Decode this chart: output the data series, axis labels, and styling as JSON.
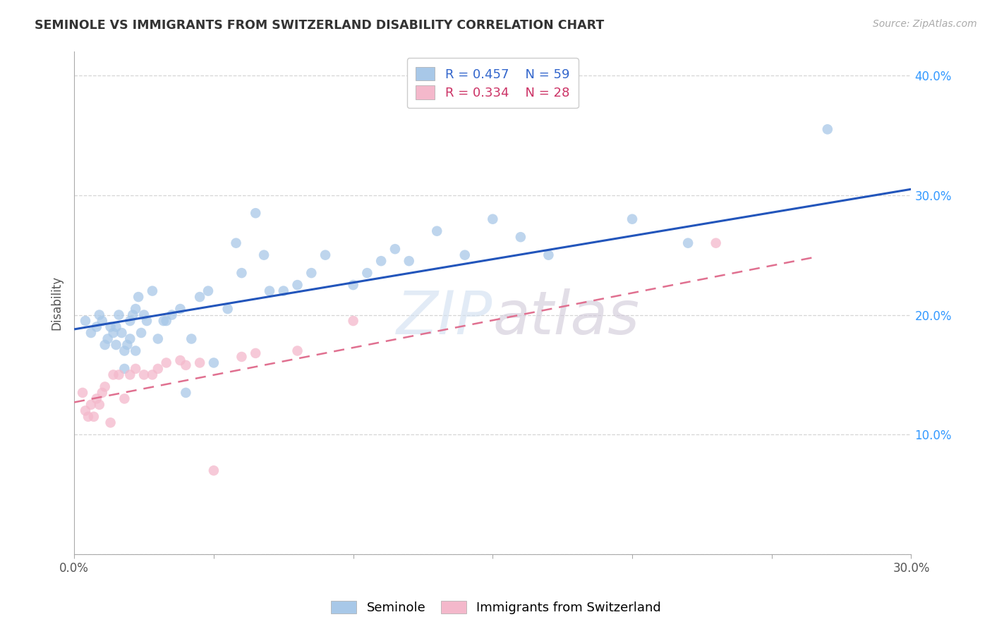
{
  "title": "SEMINOLE VS IMMIGRANTS FROM SWITZERLAND DISABILITY CORRELATION CHART",
  "source_text": "Source: ZipAtlas.com",
  "ylabel": "Disability",
  "xlim": [
    0.0,
    0.3
  ],
  "ylim": [
    0.0,
    0.42
  ],
  "xticks": [
    0.0,
    0.05,
    0.1,
    0.15,
    0.2,
    0.25,
    0.3
  ],
  "ytick_positions": [
    0.0,
    0.1,
    0.2,
    0.3,
    0.4
  ],
  "grid_color": "#cccccc",
  "background_color": "#ffffff",
  "seminole_color": "#a8c8e8",
  "swiss_color": "#f4b8cb",
  "seminole_line_color": "#2255bb",
  "swiss_line_color": "#e07090",
  "legend_R_seminole": "R = 0.457",
  "legend_N_seminole": "N = 59",
  "legend_R_swiss": "R = 0.334",
  "legend_N_swiss": "N = 28",
  "seminole_R_color": "#3366cc",
  "seminole_N_color": "#cc3333",
  "swiss_R_color": "#cc3366",
  "swiss_N_color": "#cc3333",
  "seminole_x": [
    0.004,
    0.006,
    0.008,
    0.009,
    0.01,
    0.011,
    0.012,
    0.013,
    0.014,
    0.015,
    0.015,
    0.016,
    0.017,
    0.018,
    0.018,
    0.019,
    0.02,
    0.02,
    0.021,
    0.022,
    0.022,
    0.023,
    0.024,
    0.025,
    0.026,
    0.028,
    0.03,
    0.032,
    0.033,
    0.035,
    0.038,
    0.04,
    0.042,
    0.045,
    0.048,
    0.05,
    0.055,
    0.058,
    0.06,
    0.065,
    0.068,
    0.07,
    0.075,
    0.08,
    0.085,
    0.09,
    0.1,
    0.105,
    0.11,
    0.115,
    0.12,
    0.13,
    0.14,
    0.15,
    0.16,
    0.17,
    0.2,
    0.22,
    0.27
  ],
  "seminole_y": [
    0.195,
    0.185,
    0.19,
    0.2,
    0.195,
    0.175,
    0.18,
    0.19,
    0.185,
    0.175,
    0.19,
    0.2,
    0.185,
    0.155,
    0.17,
    0.175,
    0.18,
    0.195,
    0.2,
    0.17,
    0.205,
    0.215,
    0.185,
    0.2,
    0.195,
    0.22,
    0.18,
    0.195,
    0.195,
    0.2,
    0.205,
    0.135,
    0.18,
    0.215,
    0.22,
    0.16,
    0.205,
    0.26,
    0.235,
    0.285,
    0.25,
    0.22,
    0.22,
    0.225,
    0.235,
    0.25,
    0.225,
    0.235,
    0.245,
    0.255,
    0.245,
    0.27,
    0.25,
    0.28,
    0.265,
    0.25,
    0.28,
    0.26,
    0.355
  ],
  "swiss_x": [
    0.003,
    0.004,
    0.005,
    0.006,
    0.007,
    0.008,
    0.009,
    0.01,
    0.011,
    0.013,
    0.014,
    0.016,
    0.018,
    0.02,
    0.022,
    0.025,
    0.028,
    0.03,
    0.033,
    0.038,
    0.04,
    0.045,
    0.05,
    0.06,
    0.065,
    0.08,
    0.1,
    0.23
  ],
  "swiss_y": [
    0.135,
    0.12,
    0.115,
    0.125,
    0.115,
    0.13,
    0.125,
    0.135,
    0.14,
    0.11,
    0.15,
    0.15,
    0.13,
    0.15,
    0.155,
    0.15,
    0.15,
    0.155,
    0.16,
    0.162,
    0.158,
    0.16,
    0.07,
    0.165,
    0.168,
    0.17,
    0.195,
    0.26
  ],
  "seminole_trend_x": [
    0.0,
    0.3
  ],
  "seminole_trend_y": [
    0.188,
    0.305
  ],
  "swiss_trend_x": [
    0.0,
    0.265
  ],
  "swiss_trend_y": [
    0.127,
    0.248
  ],
  "watermark_text": "ZIPatlas",
  "bottom_legend_seminole": "Seminole",
  "bottom_legend_swiss": "Immigrants from Switzerland"
}
